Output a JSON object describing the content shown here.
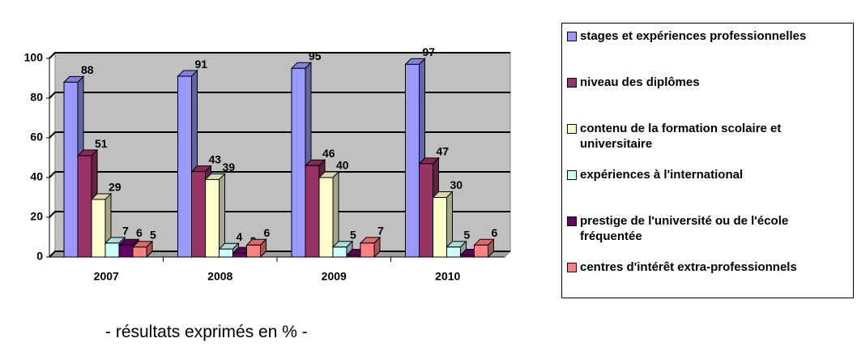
{
  "chart_data": {
    "type": "bar",
    "categories": [
      "2007",
      "2008",
      "2009",
      "2010"
    ],
    "series": [
      {
        "name": "stages et expériences professionnelles",
        "color": "#9999ff",
        "values": [
          88,
          91,
          95,
          97
        ]
      },
      {
        "name": "niveau des diplômes",
        "color": "#993366",
        "values": [
          51,
          43,
          46,
          47
        ]
      },
      {
        "name": "contenu de la formation scolaire et universitaire",
        "color": "#ffffcc",
        "values": [
          29,
          39,
          40,
          30
        ]
      },
      {
        "name": "expériences à l'international",
        "color": "#ccffff",
        "values": [
          7,
          4,
          5,
          5
        ]
      },
      {
        "name": "prestige de l'université ou de l'école fréquentée",
        "color": "#660066",
        "values": [
          6,
          2,
          1,
          1
        ]
      },
      {
        "name": "centres d'intérêt extra-professionnels",
        "color": "#ff8080",
        "values": [
          5,
          6,
          7,
          6
        ]
      }
    ],
    "ylim": [
      0,
      100
    ],
    "yticks": [
      0,
      20,
      40,
      60,
      80,
      100
    ],
    "grid": true,
    "legend": "right",
    "footnote": "- résultats exprimés en % -"
  }
}
